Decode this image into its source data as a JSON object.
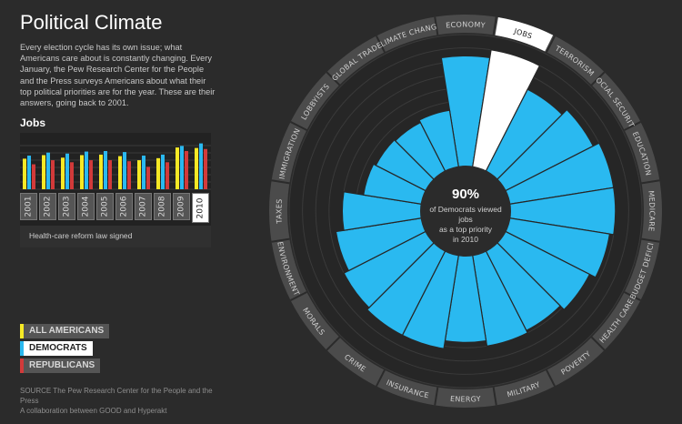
{
  "title": "Political Climate",
  "intro": "Every election cycle has its own issue; what Americans care about is constantly changing. Every January, the Pew Research Center for the People and the Press surveys Americans about what their top political priorities are for the year. These are their answers, going back to 2001.",
  "selected_issue": "Jobs",
  "note": "Health-care reform law signed",
  "legend": [
    {
      "label": "ALL AMERICANS",
      "color": "#f6e925"
    },
    {
      "label": "DEMOCRATS",
      "color": "#2ab9f0"
    },
    {
      "label": "REPUBLICANS",
      "color": "#d23a3a"
    }
  ],
  "source_line1": "SOURCE The Pew Research Center for the People and the Press",
  "source_line2": "A collaboration between GOOD and Hyperakt",
  "center": {
    "value": "90%",
    "line1": "of Democrats viewed",
    "line2": "jobs",
    "line3": "as a top priority",
    "line4": "in 2010"
  },
  "chart_data": [
    {
      "type": "bar",
      "name": "Jobs",
      "categories": [
        "2001",
        "2002",
        "2003",
        "2004",
        "2005",
        "2006",
        "2007",
        "2008",
        "2009",
        "2010"
      ],
      "selected": "2010",
      "ylim": [
        0,
        100
      ],
      "series": [
        {
          "name": "ALL AMERICANS",
          "color": "#f6e925",
          "values": [
            60,
            67,
            62,
            67,
            68,
            65,
            57,
            61,
            82,
            81
          ]
        },
        {
          "name": "DEMOCRATS",
          "color": "#2ab9f0",
          "values": [
            66,
            72,
            70,
            74,
            75,
            73,
            66,
            68,
            85,
            90
          ]
        },
        {
          "name": "REPUBLICANS",
          "color": "#d23a3a",
          "values": [
            49,
            57,
            53,
            57,
            57,
            55,
            44,
            53,
            75,
            79
          ]
        }
      ]
    },
    {
      "type": "polar_bar",
      "series_name": "DEMOCRATS",
      "year": "2010",
      "rlim": [
        0,
        100
      ],
      "grid": true,
      "highlight": "JOBS",
      "categories": [
        "ECONOMY",
        "JOBS",
        "TERRORISM",
        "SOCIAL SECURITY",
        "EDUCATION",
        "MEDICARE",
        "BUDGET DEFICIT",
        "HEALTH CARE",
        "POVERTY",
        "MILITARY",
        "ENERGY",
        "INSURANCE",
        "CRIME",
        "MORALS",
        "ENVIRONMENT",
        "TAXES",
        "IMMIGRATION",
        "LOBBYISTS",
        "GLOBAL TRADE",
        "CLIMATE CHANGE"
      ],
      "values": [
        84,
        90,
        70,
        75,
        80,
        80,
        77,
        72,
        68,
        70,
        66,
        72,
        72,
        70,
        66,
        60,
        45,
        43,
        42,
        44
      ]
    }
  ]
}
